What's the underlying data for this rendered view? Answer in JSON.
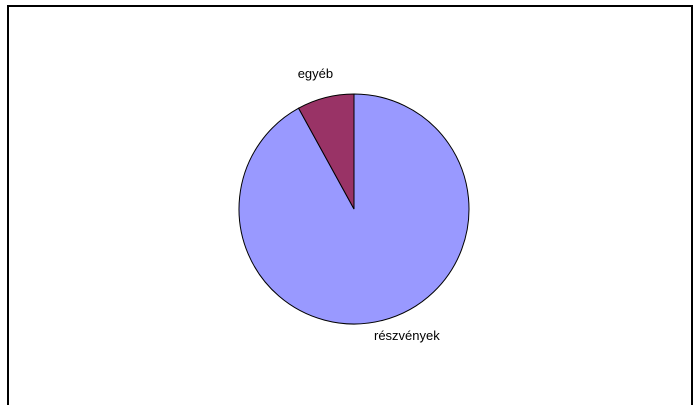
{
  "chart_data": {
    "type": "pie",
    "title": "",
    "categories": [
      "részvények",
      "egyéb"
    ],
    "values": [
      92,
      8
    ],
    "colors": [
      "#9999ff",
      "#993366"
    ],
    "legend": "none",
    "data_labels": "category names outside slices"
  }
}
